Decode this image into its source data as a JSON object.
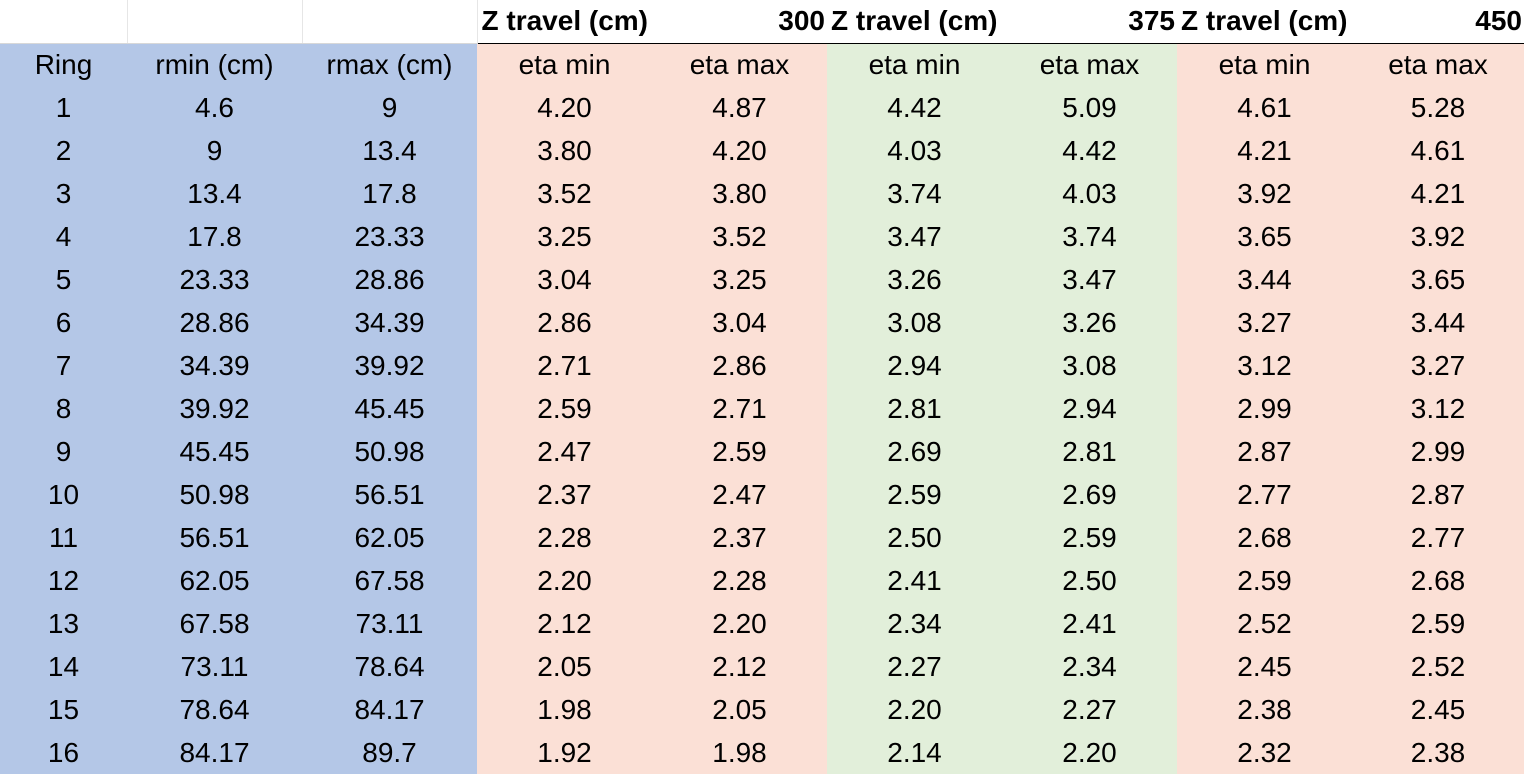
{
  "title_row": {
    "groups": [
      {
        "label": "Z travel (cm)",
        "value": "300"
      },
      {
        "label": "Z travel (cm)",
        "value": "375"
      },
      {
        "label": "Z travel (cm)",
        "value": "450"
      }
    ]
  },
  "header": [
    "Ring",
    "rmin (cm)",
    "rmax (cm)",
    "eta min",
    "eta max",
    "eta min",
    "eta max",
    "eta min",
    "eta max"
  ],
  "rows": [
    [
      "1",
      "4.6",
      "9",
      "4.20",
      "4.87",
      "4.42",
      "5.09",
      "4.61",
      "5.28"
    ],
    [
      "2",
      "9",
      "13.4",
      "3.80",
      "4.20",
      "4.03",
      "4.42",
      "4.21",
      "4.61"
    ],
    [
      "3",
      "13.4",
      "17.8",
      "3.52",
      "3.80",
      "3.74",
      "4.03",
      "3.92",
      "4.21"
    ],
    [
      "4",
      "17.8",
      "23.33",
      "3.25",
      "3.52",
      "3.47",
      "3.74",
      "3.65",
      "3.92"
    ],
    [
      "5",
      "23.33",
      "28.86",
      "3.04",
      "3.25",
      "3.26",
      "3.47",
      "3.44",
      "3.65"
    ],
    [
      "6",
      "28.86",
      "34.39",
      "2.86",
      "3.04",
      "3.08",
      "3.26",
      "3.27",
      "3.44"
    ],
    [
      "7",
      "34.39",
      "39.92",
      "2.71",
      "2.86",
      "2.94",
      "3.08",
      "3.12",
      "3.27"
    ],
    [
      "8",
      "39.92",
      "45.45",
      "2.59",
      "2.71",
      "2.81",
      "2.94",
      "2.99",
      "3.12"
    ],
    [
      "9",
      "45.45",
      "50.98",
      "2.47",
      "2.59",
      "2.69",
      "2.81",
      "2.87",
      "2.99"
    ],
    [
      "10",
      "50.98",
      "56.51",
      "2.37",
      "2.47",
      "2.59",
      "2.69",
      "2.77",
      "2.87"
    ],
    [
      "11",
      "56.51",
      "62.05",
      "2.28",
      "2.37",
      "2.50",
      "2.59",
      "2.68",
      "2.77"
    ],
    [
      "12",
      "62.05",
      "67.58",
      "2.20",
      "2.28",
      "2.41",
      "2.50",
      "2.59",
      "2.68"
    ],
    [
      "13",
      "67.58",
      "73.11",
      "2.12",
      "2.20",
      "2.34",
      "2.41",
      "2.52",
      "2.59"
    ],
    [
      "14",
      "73.11",
      "78.64",
      "2.05",
      "2.12",
      "2.27",
      "2.34",
      "2.45",
      "2.52"
    ],
    [
      "15",
      "78.64",
      "84.17",
      "1.98",
      "2.05",
      "2.20",
      "2.27",
      "2.38",
      "2.45"
    ],
    [
      "16",
      "84.17",
      "89.7",
      "1.92",
      "1.98",
      "2.14",
      "2.20",
      "2.32",
      "2.38"
    ]
  ],
  "colors": {
    "ring_columns": "#b4c7e7",
    "z300": "#fbe0d6",
    "z375": "#e2efda",
    "z450": "#fbe0d6"
  }
}
